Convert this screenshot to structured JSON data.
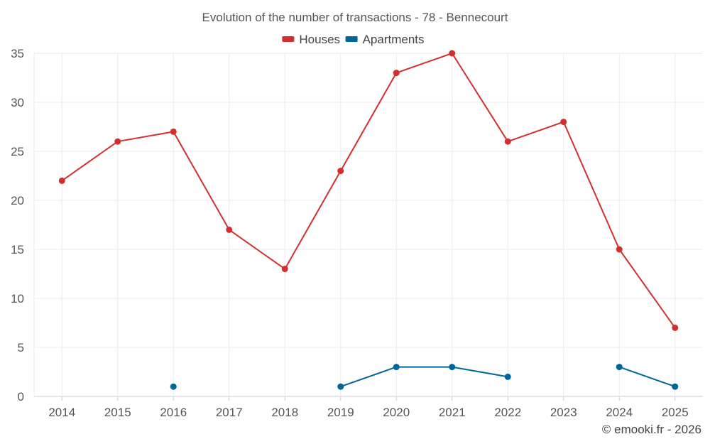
{
  "chart_data": {
    "type": "line",
    "title": "Evolution of the number of transactions - 78 - Bennecourt",
    "categories": [
      "2014",
      "2015",
      "2016",
      "2017",
      "2018",
      "2019",
      "2020",
      "2021",
      "2022",
      "2023",
      "2024",
      "2025"
    ],
    "series": [
      {
        "name": "Houses",
        "color": "#d32f2f",
        "values": [
          22,
          26,
          27,
          17,
          13,
          23,
          33,
          35,
          26,
          28,
          15,
          7
        ]
      },
      {
        "name": "Apartments",
        "color": "#006699",
        "values": [
          null,
          null,
          1,
          null,
          null,
          1,
          3,
          3,
          2,
          null,
          3,
          1
        ]
      }
    ],
    "ylim": [
      0,
      35
    ],
    "yticks": [
      0,
      5,
      10,
      15,
      20,
      25,
      30,
      35
    ],
    "grid": true,
    "legend_position": "top-center",
    "xlabel": "",
    "ylabel": ""
  },
  "credit": "© emooki.fr - 2026"
}
